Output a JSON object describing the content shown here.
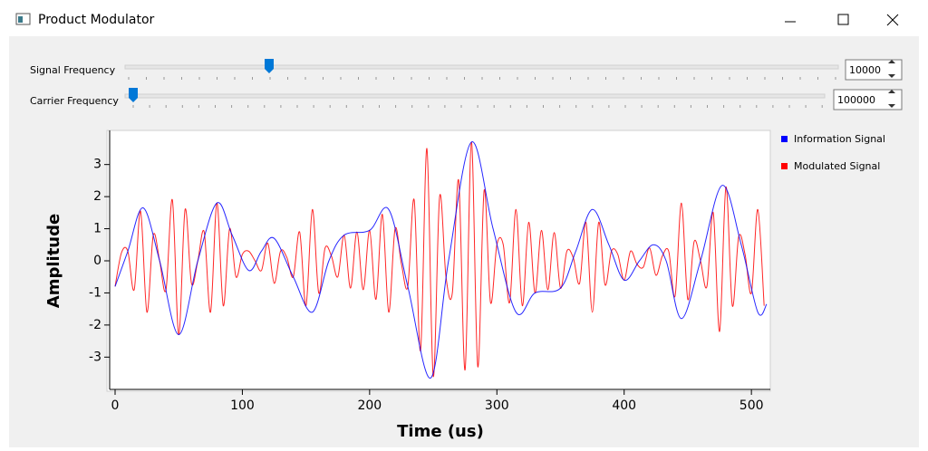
{
  "window": {
    "title": "Product Modulator"
  },
  "controls": [
    {
      "label": "Signal Frequency",
      "value": "10000"
    },
    {
      "label": "Carrier Frequency",
      "value": "100000"
    }
  ],
  "chart_data": {
    "type": "line",
    "xlabel": "Time (us)",
    "ylabel": "Amplitude",
    "xlim": [
      0,
      512
    ],
    "ylim": [
      -3.95,
      3.95
    ],
    "xticks": [
      0,
      100,
      200,
      300,
      400,
      500
    ],
    "yticks": [
      -3,
      -2,
      -1,
      0,
      1,
      2,
      3
    ],
    "legend": "right",
    "series": [
      {
        "name": "Information Signal",
        "color": "#0000ff",
        "x": [
          0,
          10,
          22,
          35,
          50,
          65,
          80,
          92,
          105,
          115,
          125,
          140,
          155,
          168,
          180,
          200,
          215,
          230,
          248,
          262,
          280,
          297,
          315,
          330,
          350,
          362,
          375,
          388,
          400,
          412,
          423,
          433,
          445,
          460,
          477,
          492,
          505,
          512
        ],
        "values": [
          -0.8,
          0.3,
          1.65,
          0,
          -2.3,
          0,
          1.8,
          0.8,
          -0.3,
          0.3,
          0.7,
          -0.5,
          -1.6,
          0,
          0.8,
          0.95,
          1.6,
          -0.8,
          -3.65,
          0,
          3.7,
          1,
          -1.6,
          -1,
          -0.85,
          0.3,
          1.6,
          0.5,
          -0.6,
          0,
          0.5,
          0,
          -1.8,
          0,
          2.35,
          0.5,
          -1.6,
          -1.35
        ]
      },
      {
        "name": "Modulated Signal",
        "color": "#ff0000",
        "x": [
          0,
          5,
          10,
          15,
          20,
          25,
          30,
          35,
          40,
          45,
          50,
          55,
          60,
          65,
          70,
          75,
          80,
          85,
          90,
          95,
          100,
          105,
          110,
          115,
          120,
          125,
          130,
          135,
          140,
          145,
          150,
          155,
          160,
          165,
          170,
          175,
          180,
          185,
          190,
          195,
          200,
          205,
          210,
          215,
          220,
          225,
          230,
          235,
          240,
          245,
          250,
          255,
          260,
          265,
          270,
          275,
          280,
          285,
          290,
          295,
          300,
          305,
          310,
          315,
          320,
          325,
          330,
          335,
          340,
          345,
          350,
          355,
          360,
          365,
          370,
          375,
          380,
          385,
          390,
          395,
          400,
          405,
          410,
          415,
          420,
          425,
          430,
          435,
          440,
          445,
          450,
          455,
          460,
          465,
          470,
          475,
          480,
          485,
          490,
          495,
          500,
          505,
          510
        ],
        "values": [
          -0.8,
          0.25,
          0.3,
          -0.9,
          1.55,
          -1.6,
          0.8,
          0,
          -0.9,
          1.9,
          -2.3,
          1.6,
          -0.7,
          0,
          0.9,
          -1.6,
          1.8,
          -1.4,
          1.0,
          -0.5,
          0.2,
          0.3,
          0,
          -0.3,
          0.55,
          -0.7,
          0.3,
          0.1,
          -0.5,
          0.9,
          -1.4,
          1.6,
          -1.0,
          0.4,
          0.15,
          -0.5,
          0.8,
          -0.85,
          0.9,
          -0.9,
          0.95,
          -1.2,
          1.45,
          -1.6,
          1.0,
          -0.1,
          -0.8,
          1.9,
          -2.8,
          3.5,
          -3.6,
          2.0,
          -0.5,
          -1.0,
          2.5,
          -3.4,
          3.7,
          -3.3,
          2.2,
          -1.3,
          0.5,
          0.5,
          -1.3,
          1.6,
          -1.4,
          1.2,
          -1.0,
          0.95,
          -0.9,
          0.88,
          -0.85,
          0.3,
          0.1,
          -0.7,
          1.2,
          -1.6,
          1.2,
          -0.75,
          0.3,
          0.2,
          -0.6,
          0.3,
          -0.1,
          -0.2,
          0.4,
          -0.45,
          0.15,
          0.3,
          -1.1,
          1.8,
          -1.2,
          0.6,
          0,
          -0.8,
          1.5,
          -2.2,
          2.3,
          -1.4,
          0.75,
          0.2,
          -1.0,
          1.6,
          -1.4
        ]
      }
    ]
  }
}
